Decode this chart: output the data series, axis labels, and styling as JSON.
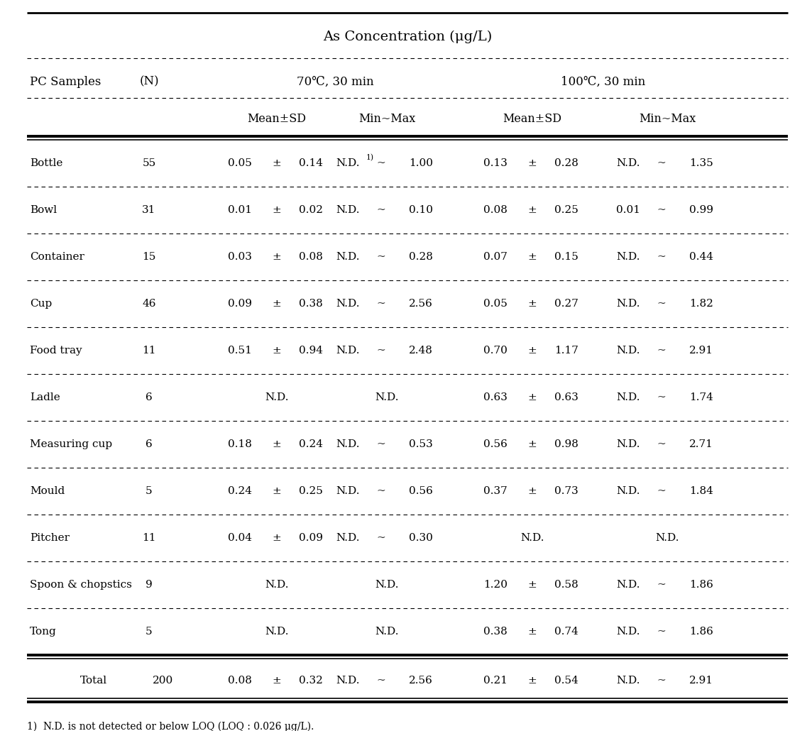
{
  "title": "As Concentration (μg/L)",
  "col_header_1": "PC Samples",
  "col_header_2": "(N)",
  "subheader_70": "70℃, 30 min",
  "subheader_100": "100℃, 30 min",
  "subheader_mean": "Mean±SD",
  "subheader_minmax": "Min~Max",
  "rows": [
    {
      "sample": "Bottle",
      "n": "55",
      "m70_a": "0.05",
      "m70_b": "0.14",
      "mm70_a": "N.D.",
      "mm70_sup": "1)",
      "mm70_b": "1.00",
      "m100_a": "0.13",
      "m100_b": "0.28",
      "mm100_a": "N.D.",
      "mm100_b": "1.35",
      "nd70": false,
      "nd_mm70": false,
      "nd100": false,
      "nd_mm100": false
    },
    {
      "sample": "Bowl",
      "n": "31",
      "m70_a": "0.01",
      "m70_b": "0.02",
      "mm70_a": "N.D.",
      "mm70_sup": "",
      "mm70_b": "0.10",
      "m100_a": "0.08",
      "m100_b": "0.25",
      "mm100_a": "0.01",
      "mm100_b": "0.99",
      "nd70": false,
      "nd_mm70": false,
      "nd100": false,
      "nd_mm100": false
    },
    {
      "sample": "Container",
      "n": "15",
      "m70_a": "0.03",
      "m70_b": "0.08",
      "mm70_a": "N.D.",
      "mm70_sup": "",
      "mm70_b": "0.28",
      "m100_a": "0.07",
      "m100_b": "0.15",
      "mm100_a": "N.D.",
      "mm100_b": "0.44",
      "nd70": false,
      "nd_mm70": false,
      "nd100": false,
      "nd_mm100": false
    },
    {
      "sample": "Cup",
      "n": "46",
      "m70_a": "0.09",
      "m70_b": "0.38",
      "mm70_a": "N.D.",
      "mm70_sup": "",
      "mm70_b": "2.56",
      "m100_a": "0.05",
      "m100_b": "0.27",
      "mm100_a": "N.D.",
      "mm100_b": "1.82",
      "nd70": false,
      "nd_mm70": false,
      "nd100": false,
      "nd_mm100": false
    },
    {
      "sample": "Food tray",
      "n": "11",
      "m70_a": "0.51",
      "m70_b": "0.94",
      "mm70_a": "N.D.",
      "mm70_sup": "",
      "mm70_b": "2.48",
      "m100_a": "0.70",
      "m100_b": "1.17",
      "mm100_a": "N.D.",
      "mm100_b": "2.91",
      "nd70": false,
      "nd_mm70": false,
      "nd100": false,
      "nd_mm100": false
    },
    {
      "sample": "Ladle",
      "n": "6",
      "m70_a": "",
      "m70_b": "",
      "mm70_a": "",
      "mm70_sup": "",
      "mm70_b": "",
      "m100_a": "0.63",
      "m100_b": "0.63",
      "mm100_a": "N.D.",
      "mm100_b": "1.74",
      "nd70": true,
      "nd_mm70": true,
      "nd100": false,
      "nd_mm100": false
    },
    {
      "sample": "Measuring cup",
      "n": "6",
      "m70_a": "0.18",
      "m70_b": "0.24",
      "mm70_a": "N.D.",
      "mm70_sup": "",
      "mm70_b": "0.53",
      "m100_a": "0.56",
      "m100_b": "0.98",
      "mm100_a": "N.D.",
      "mm100_b": "2.71",
      "nd70": false,
      "nd_mm70": false,
      "nd100": false,
      "nd_mm100": false
    },
    {
      "sample": "Mould",
      "n": "5",
      "m70_a": "0.24",
      "m70_b": "0.25",
      "mm70_a": "N.D.",
      "mm70_sup": "",
      "mm70_b": "0.56",
      "m100_a": "0.37",
      "m100_b": "0.73",
      "mm100_a": "N.D.",
      "mm100_b": "1.84",
      "nd70": false,
      "nd_mm70": false,
      "nd100": false,
      "nd_mm100": false
    },
    {
      "sample": "Pitcher",
      "n": "11",
      "m70_a": "0.04",
      "m70_b": "0.09",
      "mm70_a": "N.D.",
      "mm70_sup": "",
      "mm70_b": "0.30",
      "m100_a": "",
      "m100_b": "",
      "mm100_a": "",
      "mm100_b": "",
      "nd70": false,
      "nd_mm70": false,
      "nd100": true,
      "nd_mm100": true
    },
    {
      "sample": "Spoon & chopstics",
      "n": "9",
      "m70_a": "",
      "m70_b": "",
      "mm70_a": "",
      "mm70_sup": "",
      "mm70_b": "",
      "m100_a": "1.20",
      "m100_b": "0.58",
      "mm100_a": "N.D.",
      "mm100_b": "1.86",
      "nd70": true,
      "nd_mm70": true,
      "nd100": false,
      "nd_mm100": false
    },
    {
      "sample": "Tong",
      "n": "5",
      "m70_a": "",
      "m70_b": "",
      "mm70_a": "",
      "mm70_sup": "",
      "mm70_b": "",
      "m100_a": "0.38",
      "m100_b": "0.74",
      "mm100_a": "N.D.",
      "mm100_b": "1.86",
      "nd70": true,
      "nd_mm70": true,
      "nd100": false,
      "nd_mm100": false
    }
  ],
  "total": {
    "m70_a": "0.08",
    "m70_b": "0.32",
    "mm70_b": "2.56",
    "m100_a": "0.21",
    "m100_b": "0.54",
    "mm100_b": "2.91"
  },
  "footnote": "1)  N.D. is not detected or below LOQ (LOQ : 0.026 μg/L).",
  "bg_color": "#ffffff",
  "text_color": "#000000"
}
